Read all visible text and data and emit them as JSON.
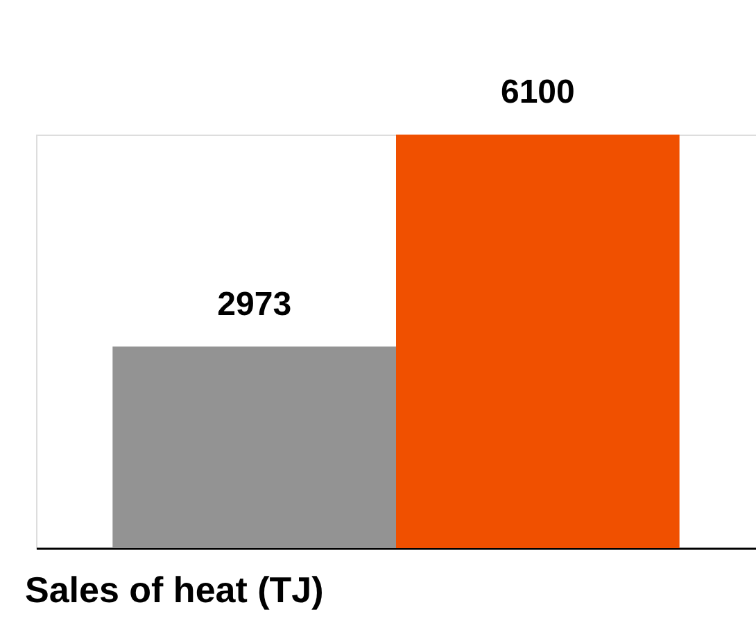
{
  "chart_data": {
    "type": "bar",
    "title": "Sales of heat (TJ)",
    "categories": [
      null,
      null
    ],
    "values": [
      2973,
      6100
    ],
    "colors": [
      "#939393",
      "#f05000"
    ],
    "data_labels": true
  }
}
